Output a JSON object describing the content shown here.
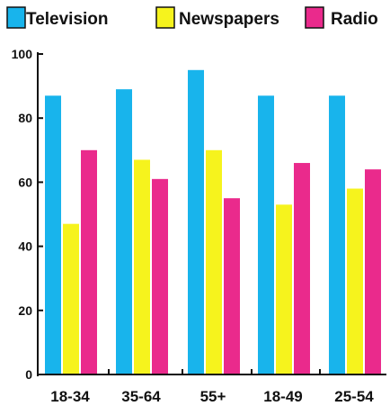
{
  "chart_data": {
    "type": "bar",
    "categories": [
      "18-34",
      "35-64",
      "55+",
      "18-49",
      "25-54"
    ],
    "series": [
      {
        "name": "Television",
        "color": "#18b4ec",
        "values": [
          87,
          89,
          95,
          87,
          87
        ]
      },
      {
        "name": "Newspapers",
        "color": "#f6f31d",
        "values": [
          47,
          67,
          70,
          53,
          58
        ]
      },
      {
        "name": "Radio",
        "color": "#ea2a8c",
        "values": [
          70,
          61,
          55,
          66,
          64
        ]
      }
    ],
    "yticks": [
      "0",
      "20",
      "40",
      "60",
      "80",
      "100"
    ],
    "ylim": [
      0,
      100
    ],
    "title": "",
    "xlabel": "",
    "ylabel": "",
    "legend": "top",
    "grid": false
  }
}
